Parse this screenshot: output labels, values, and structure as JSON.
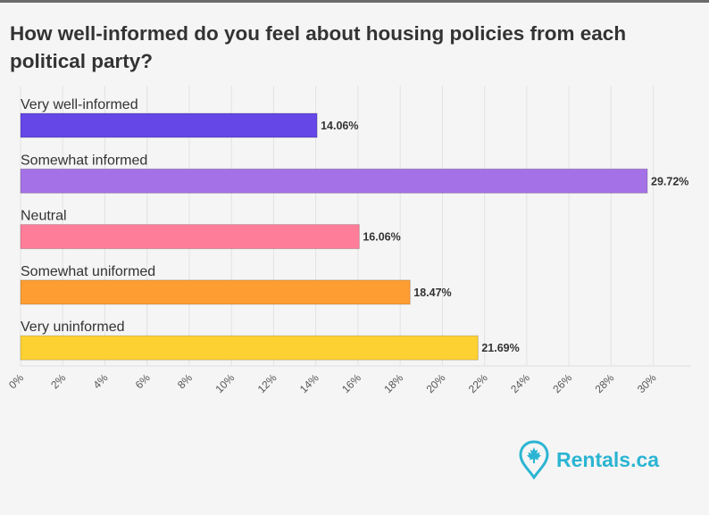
{
  "chart_data": {
    "type": "bar",
    "orientation": "horizontal",
    "title": "How well-informed do you feel about housing policies from each political party?",
    "categories": [
      "Very well-informed",
      "Somewhat informed",
      "Neutral",
      "Somewhat uniformed",
      "Very uninformed"
    ],
    "values": [
      14.06,
      29.72,
      16.06,
      18.47,
      21.69
    ],
    "value_labels": [
      "14.06%",
      "29.72%",
      "16.06%",
      "18.47%",
      "21.69%"
    ],
    "colors": [
      "#6447e6",
      "#a472e6",
      "#fe7e9a",
      "#fe9d32",
      "#fdd132"
    ],
    "xlim": [
      0,
      32
    ],
    "x_ticks": [
      0,
      2,
      4,
      6,
      8,
      10,
      12,
      14,
      16,
      18,
      20,
      22,
      24,
      26,
      28,
      30
    ],
    "x_tick_labels": [
      "0%",
      "2%",
      "4%",
      "6%",
      "8%",
      "10%",
      "12%",
      "14%",
      "16%",
      "18%",
      "20%",
      "22%",
      "24%",
      "26%",
      "28%",
      "30%"
    ],
    "xlabel": "",
    "ylabel": "",
    "grid": true,
    "legend": "none"
  },
  "logo": {
    "text": "Rentals.ca",
    "icon": "maple-leaf-pin-icon",
    "color": "#2bb5d2"
  }
}
